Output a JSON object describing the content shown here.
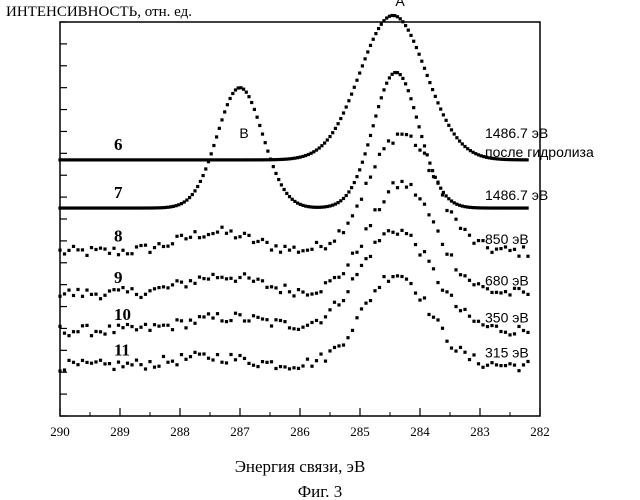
{
  "chart_data": {
    "type": "scatter",
    "ylabel": "ИНТЕНСИВНОСТЬ, отн. ед.",
    "xlabel": "Энергия связи, эВ",
    "caption": "Фиг. 3",
    "xlim": [
      290,
      282
    ],
    "x_ticks": [
      "290",
      "289",
      "288",
      "287",
      "286",
      "285",
      "284",
      "283",
      "282"
    ],
    "peak_labels": [
      {
        "text": "B",
        "x": 287.0
      },
      {
        "text": "A",
        "x": 284.4
      }
    ],
    "series": [
      {
        "name": "6",
        "label": "1486.7 эВ",
        "label2": "после гидролиза",
        "baseline": 0.82,
        "peaks": [
          {
            "x": 284.45,
            "amp": 0.66,
            "width": 0.55
          }
        ],
        "noise": 0.0,
        "style": "line"
      },
      {
        "name": "7",
        "label": "1486.7 эВ",
        "label2": "",
        "baseline": 0.6,
        "peaks": [
          {
            "x": 287.0,
            "amp": 0.55,
            "width": 0.38
          },
          {
            "x": 284.4,
            "amp": 0.62,
            "width": 0.38
          }
        ],
        "noise": 0.0,
        "style": "line"
      },
      {
        "name": "8",
        "label": "850 эВ",
        "label2": "",
        "baseline": 0.4,
        "peaks": [
          {
            "x": 287.4,
            "amp": 0.09,
            "width": 0.6
          },
          {
            "x": 284.3,
            "amp": 0.54,
            "width": 0.55
          }
        ],
        "noise": 0.05,
        "style": "points"
      },
      {
        "name": "9",
        "label": "680 эВ",
        "label2": "",
        "baseline": 0.21,
        "peaks": [
          {
            "x": 287.3,
            "amp": 0.08,
            "width": 0.6
          },
          {
            "x": 284.3,
            "amp": 0.5,
            "width": 0.55
          }
        ],
        "noise": 0.05,
        "style": "points"
      },
      {
        "name": "10",
        "label": "350 эВ",
        "label2": "",
        "baseline": 0.04,
        "peaks": [
          {
            "x": 287.2,
            "amp": 0.06,
            "width": 0.7
          },
          {
            "x": 284.4,
            "amp": 0.46,
            "width": 0.6
          }
        ],
        "noise": 0.05,
        "style": "points"
      },
      {
        "name": "11",
        "label": "315 эВ",
        "label2": "",
        "baseline": -0.12,
        "peaks": [
          {
            "x": 287.5,
            "amp": 0.04,
            "width": 0.6
          },
          {
            "x": 284.4,
            "amp": 0.42,
            "width": 0.55
          }
        ],
        "noise": 0.05,
        "style": "points"
      }
    ]
  }
}
